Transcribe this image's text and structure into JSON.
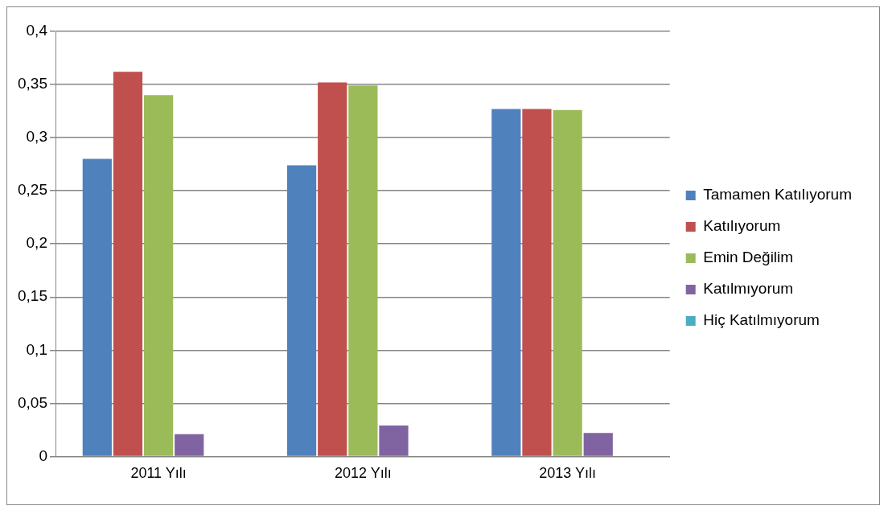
{
  "chart_data": {
    "type": "bar",
    "categories": [
      "2011 Yılı",
      "2012 Yılı",
      "2013 Yılı"
    ],
    "series": [
      {
        "name": "Tamamen Katılıyorum",
        "color": "#4f81bd",
        "values": [
          0.28,
          0.274,
          0.327
        ]
      },
      {
        "name": "Katılıyorum",
        "color": "#c0504d",
        "values": [
          0.362,
          0.352,
          0.327
        ]
      },
      {
        "name": "Emin Değilim",
        "color": "#9bbb59",
        "values": [
          0.34,
          0.349,
          0.326
        ]
      },
      {
        "name": "Katılmıyorum",
        "color": "#8064a2",
        "values": [
          0.021,
          0.029,
          0.022
        ]
      },
      {
        "name": "Hiç Katılmıyorum",
        "color": "#4bacc6",
        "values": [
          0,
          0,
          0
        ]
      }
    ],
    "ylim": [
      0,
      0.4
    ],
    "yticks": [
      {
        "value": 0,
        "label": "0"
      },
      {
        "value": 0.05,
        "label": "0,05"
      },
      {
        "value": 0.1,
        "label": "0,1"
      },
      {
        "value": 0.15,
        "label": "0,15"
      },
      {
        "value": 0.2,
        "label": "0,2"
      },
      {
        "value": 0.25,
        "label": "0,25"
      },
      {
        "value": 0.3,
        "label": "0,3"
      },
      {
        "value": 0.35,
        "label": "0,35"
      },
      {
        "value": 0.4,
        "label": "0,4"
      }
    ],
    "grid": "y",
    "legend": "right"
  }
}
